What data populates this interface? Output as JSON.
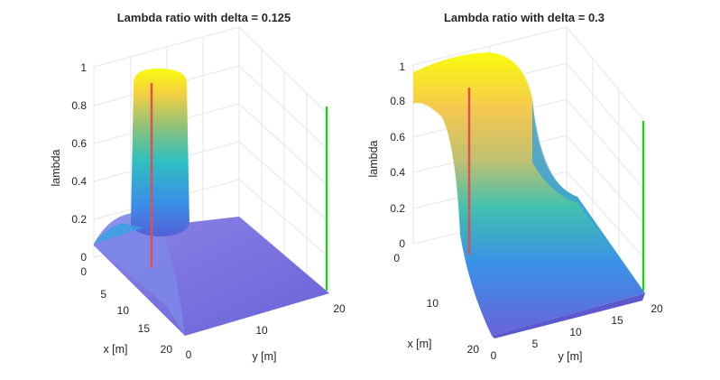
{
  "chart_data": [
    {
      "type": "surface",
      "title": "Lambda ratio with delta = 0.125",
      "xlabel": "x [m]",
      "ylabel": "y [m]",
      "zlabel": "lambda",
      "xlim": [
        0,
        20
      ],
      "ylim": [
        0,
        20
      ],
      "zlim": [
        0,
        1
      ],
      "x_ticks": [
        "0",
        "5",
        "10",
        "15",
        "20"
      ],
      "y_ticks": [
        "0",
        "10",
        "20"
      ],
      "z_ticks": [
        "0",
        "0.2",
        "0.4",
        "0.6",
        "0.8",
        "1"
      ],
      "grid": true,
      "colormap": [
        "#3e26a8",
        "#2f6ff0",
        "#13b5d5",
        "#4ac16d",
        "#d6bd3a",
        "#f9fb0e"
      ],
      "surface_description": "near-1 peak around x=0..3, y=0..3, decaying to ~0.05 elsewhere",
      "markers": [
        {
          "color": "#ff4040",
          "from_z": 0,
          "to_z": 0.95
        },
        {
          "color": "#00e000",
          "from_z": 0,
          "to_z": 1
        }
      ]
    },
    {
      "type": "surface",
      "title": "Lambda ratio with delta = 0.3",
      "xlabel": "x [m]",
      "ylabel": "y [m]",
      "zlabel": "lambda",
      "xlim": [
        0,
        20
      ],
      "ylim": [
        0,
        20
      ],
      "zlim": [
        0,
        1
      ],
      "x_ticks": [
        "0",
        "10",
        "20"
      ],
      "y_ticks": [
        "0",
        "5",
        "10",
        "15",
        "20"
      ],
      "z_ticks": [
        "0",
        "0.2",
        "0.4",
        "0.6",
        "0.8",
        "1"
      ],
      "grid": true,
      "colormap": [
        "#3e26a8",
        "#2f6ff0",
        "#13b5d5",
        "#4ac16d",
        "#d6bd3a",
        "#f9fb0e"
      ],
      "surface_description": "ridge near 1 along x=0 for y=0..10, decaying to ~0.05 at large x",
      "markers": [
        {
          "color": "#ff4040",
          "from_z": 0,
          "to_z": 0.85
        },
        {
          "color": "#00e000",
          "from_z": 0,
          "to_z": 0.65
        }
      ]
    }
  ]
}
